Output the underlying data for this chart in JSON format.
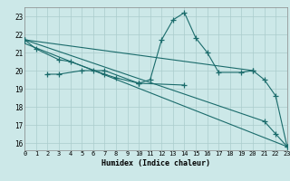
{
  "xlabel": "Humidex (Indice chaleur)",
  "bg_color": "#cce8e8",
  "grid_color": "#aacccc",
  "line_color": "#1a6b6b",
  "xlim": [
    0,
    23
  ],
  "ylim": [
    15.6,
    23.5
  ],
  "xticks": [
    0,
    1,
    2,
    3,
    4,
    5,
    6,
    7,
    8,
    9,
    10,
    11,
    12,
    13,
    14,
    15,
    16,
    17,
    18,
    19,
    20,
    21,
    22,
    23
  ],
  "yticks": [
    16,
    17,
    18,
    19,
    20,
    21,
    22,
    23
  ],
  "series": [
    {
      "x": [
        0,
        1,
        3,
        4,
        7,
        8,
        10,
        14
      ],
      "y": [
        21.7,
        21.2,
        20.6,
        20.5,
        19.8,
        19.6,
        19.3,
        19.2
      ],
      "markers": true
    },
    {
      "x": [
        2,
        3,
        5,
        6,
        7,
        10
      ],
      "y": [
        19.8,
        19.8,
        20.0,
        20.0,
        20.0,
        19.3
      ],
      "markers": true
    },
    {
      "x": [
        10,
        11,
        12,
        13,
        14,
        15,
        16,
        17,
        19,
        20
      ],
      "y": [
        19.3,
        19.5,
        21.7,
        22.8,
        23.2,
        21.8,
        21.0,
        19.9,
        19.9,
        20.0
      ],
      "markers": true
    },
    {
      "x": [
        0,
        20,
        21,
        22,
        23
      ],
      "y": [
        21.7,
        20.0,
        19.5,
        18.6,
        15.8
      ],
      "markers": true
    },
    {
      "x": [
        0,
        21,
        22,
        23
      ],
      "y": [
        21.7,
        17.2,
        16.5,
        15.8
      ],
      "markers": true
    },
    {
      "x": [
        0,
        23
      ],
      "y": [
        21.5,
        15.8
      ],
      "markers": false
    }
  ]
}
